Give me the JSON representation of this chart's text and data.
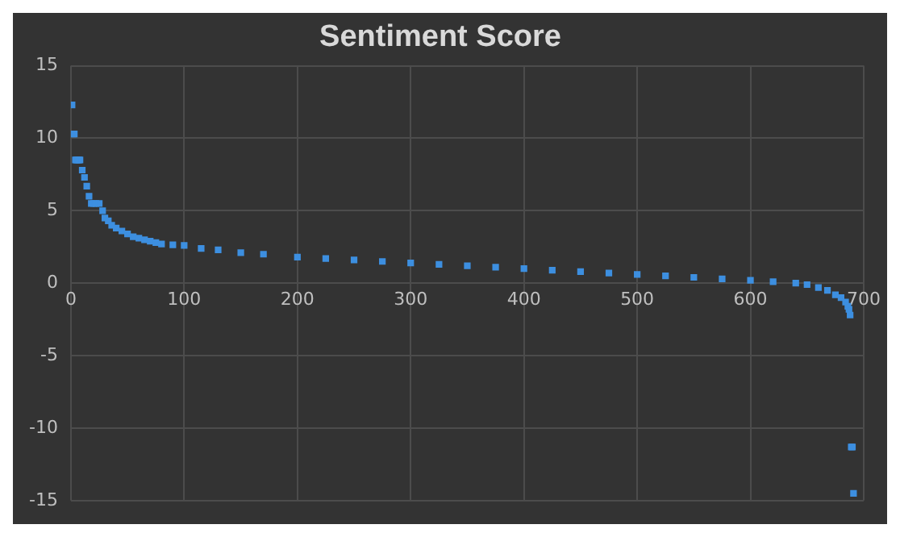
{
  "chart_data": {
    "type": "scatter",
    "title": "Sentiment Score",
    "x": [
      1,
      2,
      3,
      4,
      5,
      6,
      7,
      8,
      10,
      12,
      14,
      16,
      18,
      20,
      22,
      25,
      28,
      30,
      33,
      36,
      40,
      45,
      50,
      55,
      60,
      65,
      70,
      75,
      80,
      90,
      100,
      115,
      130,
      150,
      170,
      200,
      225,
      250,
      275,
      300,
      325,
      350,
      375,
      400,
      425,
      450,
      475,
      500,
      525,
      550,
      575,
      600,
      620,
      640,
      650,
      660,
      668,
      675,
      680,
      684,
      686,
      687,
      688,
      689,
      690,
      691
    ],
    "values": [
      12.3,
      10.3,
      10.3,
      8.5,
      8.5,
      8.5,
      8.5,
      8.5,
      7.8,
      7.3,
      6.7,
      6.0,
      5.5,
      5.5,
      5.5,
      5.5,
      5.0,
      4.5,
      4.3,
      4.0,
      3.8,
      3.6,
      3.4,
      3.2,
      3.1,
      3.0,
      2.9,
      2.8,
      2.7,
      2.65,
      2.6,
      2.4,
      2.3,
      2.1,
      2.0,
      1.8,
      1.7,
      1.6,
      1.5,
      1.4,
      1.3,
      1.2,
      1.1,
      1.0,
      0.9,
      0.8,
      0.7,
      0.6,
      0.5,
      0.4,
      0.3,
      0.2,
      0.1,
      0.0,
      -0.1,
      -0.3,
      -0.5,
      -0.8,
      -1.0,
      -1.3,
      -1.6,
      -1.8,
      -2.2,
      -11.3,
      -11.3,
      -14.5
    ],
    "color": "#3d8fe0",
    "marker": "square",
    "xlim": [
      0,
      700
    ],
    "xticks": [
      0,
      100,
      200,
      300,
      400,
      500,
      600,
      700
    ],
    "ylim": [
      -15,
      15
    ],
    "yticks": [
      -15,
      -10,
      -5,
      0,
      5,
      10,
      15
    ],
    "grid": true,
    "legend": false
  }
}
